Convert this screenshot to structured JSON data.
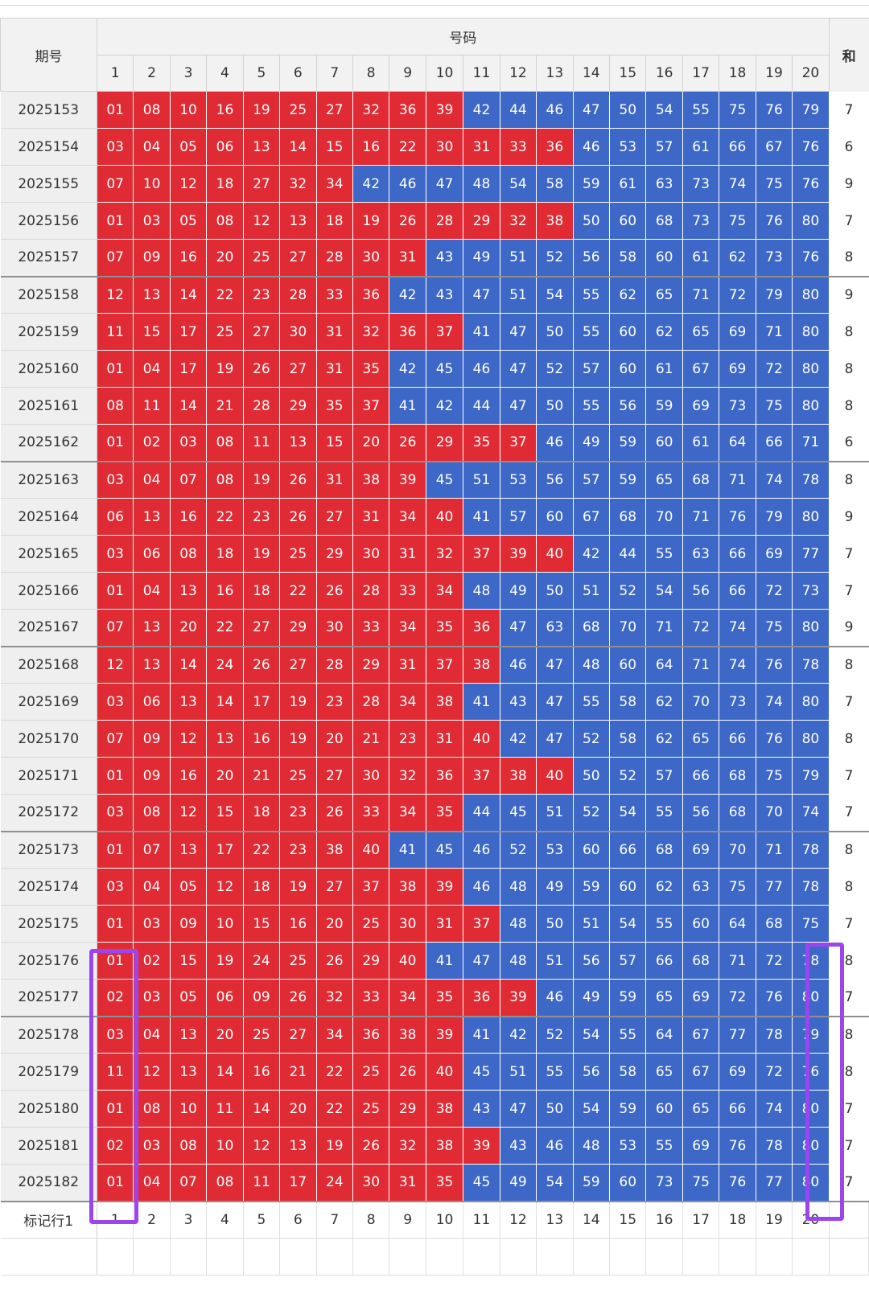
{
  "header": {
    "issue_label": "期号",
    "numbers_label": "号码",
    "extra_label": "和"
  },
  "columns": [
    "1",
    "2",
    "3",
    "4",
    "5",
    "6",
    "7",
    "8",
    "9",
    "10",
    "11",
    "12",
    "13",
    "14",
    "15",
    "16",
    "17",
    "18",
    "19",
    "20"
  ],
  "colors": {
    "red": "#e02b35",
    "blue": "#3d68c8",
    "highlight": "#9b45f0"
  },
  "rows": [
    {
      "issue": "2025153",
      "nums": [
        "01",
        "08",
        "10",
        "16",
        "19",
        "25",
        "27",
        "32",
        "36",
        "39",
        "42",
        "44",
        "46",
        "47",
        "50",
        "54",
        "55",
        "75",
        "76",
        "79"
      ],
      "red": 10,
      "extra": "7"
    },
    {
      "issue": "2025154",
      "nums": [
        "03",
        "04",
        "05",
        "06",
        "13",
        "14",
        "15",
        "16",
        "22",
        "30",
        "31",
        "33",
        "36",
        "46",
        "53",
        "57",
        "61",
        "66",
        "67",
        "76"
      ],
      "red": 13,
      "extra": "6"
    },
    {
      "issue": "2025155",
      "nums": [
        "07",
        "10",
        "12",
        "18",
        "27",
        "32",
        "34",
        "42",
        "46",
        "47",
        "48",
        "54",
        "58",
        "59",
        "61",
        "63",
        "73",
        "74",
        "75",
        "76"
      ],
      "red": 7,
      "extra": "9"
    },
    {
      "issue": "2025156",
      "nums": [
        "01",
        "03",
        "05",
        "08",
        "12",
        "13",
        "18",
        "19",
        "26",
        "28",
        "29",
        "32",
        "38",
        "50",
        "60",
        "68",
        "73",
        "75",
        "76",
        "80"
      ],
      "red": 13,
      "extra": "7"
    },
    {
      "issue": "2025157",
      "nums": [
        "07",
        "09",
        "16",
        "20",
        "25",
        "27",
        "28",
        "30",
        "31",
        "43",
        "49",
        "51",
        "52",
        "56",
        "58",
        "60",
        "61",
        "62",
        "73",
        "76"
      ],
      "red": 9,
      "extra": "8"
    },
    {
      "issue": "2025158",
      "nums": [
        "12",
        "13",
        "14",
        "22",
        "23",
        "28",
        "33",
        "36",
        "42",
        "43",
        "47",
        "51",
        "54",
        "55",
        "62",
        "65",
        "71",
        "72",
        "79",
        "80"
      ],
      "red": 8,
      "extra": "9"
    },
    {
      "issue": "2025159",
      "nums": [
        "11",
        "15",
        "17",
        "25",
        "27",
        "30",
        "31",
        "32",
        "36",
        "37",
        "41",
        "47",
        "50",
        "55",
        "60",
        "62",
        "65",
        "69",
        "71",
        "80"
      ],
      "red": 10,
      "extra": "8"
    },
    {
      "issue": "2025160",
      "nums": [
        "01",
        "04",
        "17",
        "19",
        "26",
        "27",
        "31",
        "35",
        "42",
        "45",
        "46",
        "47",
        "52",
        "57",
        "60",
        "61",
        "67",
        "69",
        "72",
        "80"
      ],
      "red": 8,
      "extra": "8"
    },
    {
      "issue": "2025161",
      "nums": [
        "08",
        "11",
        "14",
        "21",
        "28",
        "29",
        "35",
        "37",
        "41",
        "42",
        "44",
        "47",
        "50",
        "55",
        "56",
        "59",
        "69",
        "73",
        "75",
        "80"
      ],
      "red": 8,
      "extra": "8"
    },
    {
      "issue": "2025162",
      "nums": [
        "01",
        "02",
        "03",
        "08",
        "11",
        "13",
        "15",
        "20",
        "26",
        "29",
        "35",
        "37",
        "46",
        "49",
        "59",
        "60",
        "61",
        "64",
        "66",
        "71"
      ],
      "red": 12,
      "extra": "6"
    },
    {
      "issue": "2025163",
      "nums": [
        "03",
        "04",
        "07",
        "08",
        "19",
        "26",
        "31",
        "38",
        "39",
        "45",
        "51",
        "53",
        "56",
        "57",
        "59",
        "65",
        "68",
        "71",
        "74",
        "78"
      ],
      "red": 9,
      "extra": "8"
    },
    {
      "issue": "2025164",
      "nums": [
        "06",
        "13",
        "16",
        "22",
        "23",
        "26",
        "27",
        "31",
        "34",
        "40",
        "41",
        "57",
        "60",
        "67",
        "68",
        "70",
        "71",
        "76",
        "79",
        "80"
      ],
      "red": 10,
      "extra": "9"
    },
    {
      "issue": "2025165",
      "nums": [
        "03",
        "06",
        "08",
        "18",
        "19",
        "25",
        "29",
        "30",
        "31",
        "32",
        "37",
        "39",
        "40",
        "42",
        "44",
        "55",
        "63",
        "66",
        "69",
        "77"
      ],
      "red": 13,
      "extra": "7"
    },
    {
      "issue": "2025166",
      "nums": [
        "01",
        "04",
        "13",
        "16",
        "18",
        "22",
        "26",
        "28",
        "33",
        "34",
        "48",
        "49",
        "50",
        "51",
        "52",
        "54",
        "56",
        "66",
        "72",
        "73"
      ],
      "red": 10,
      "extra": "7"
    },
    {
      "issue": "2025167",
      "nums": [
        "07",
        "13",
        "20",
        "22",
        "27",
        "29",
        "30",
        "33",
        "34",
        "35",
        "36",
        "47",
        "63",
        "68",
        "70",
        "71",
        "72",
        "74",
        "75",
        "80"
      ],
      "red": 11,
      "extra": "9"
    },
    {
      "issue": "2025168",
      "nums": [
        "12",
        "13",
        "14",
        "24",
        "26",
        "27",
        "28",
        "29",
        "31",
        "37",
        "38",
        "46",
        "47",
        "48",
        "60",
        "64",
        "71",
        "74",
        "76",
        "78"
      ],
      "red": 11,
      "extra": "8"
    },
    {
      "issue": "2025169",
      "nums": [
        "03",
        "06",
        "13",
        "14",
        "17",
        "19",
        "23",
        "28",
        "34",
        "38",
        "41",
        "43",
        "47",
        "55",
        "58",
        "62",
        "70",
        "73",
        "74",
        "80"
      ],
      "red": 10,
      "extra": "7"
    },
    {
      "issue": "2025170",
      "nums": [
        "07",
        "09",
        "12",
        "13",
        "16",
        "19",
        "20",
        "21",
        "23",
        "31",
        "40",
        "42",
        "47",
        "52",
        "58",
        "62",
        "65",
        "66",
        "76",
        "80"
      ],
      "red": 11,
      "extra": "8"
    },
    {
      "issue": "2025171",
      "nums": [
        "01",
        "09",
        "16",
        "20",
        "21",
        "25",
        "27",
        "30",
        "32",
        "36",
        "37",
        "38",
        "40",
        "50",
        "52",
        "57",
        "66",
        "68",
        "75",
        "79"
      ],
      "red": 13,
      "extra": "7"
    },
    {
      "issue": "2025172",
      "nums": [
        "03",
        "08",
        "12",
        "15",
        "18",
        "23",
        "26",
        "33",
        "34",
        "35",
        "44",
        "45",
        "51",
        "52",
        "54",
        "55",
        "56",
        "68",
        "70",
        "74"
      ],
      "red": 10,
      "extra": "7"
    },
    {
      "issue": "2025173",
      "nums": [
        "01",
        "07",
        "13",
        "17",
        "22",
        "23",
        "38",
        "40",
        "41",
        "45",
        "46",
        "52",
        "53",
        "60",
        "66",
        "68",
        "69",
        "70",
        "71",
        "78"
      ],
      "red": 8,
      "extra": "8"
    },
    {
      "issue": "2025174",
      "nums": [
        "03",
        "04",
        "05",
        "12",
        "18",
        "19",
        "27",
        "37",
        "38",
        "39",
        "46",
        "48",
        "49",
        "59",
        "60",
        "62",
        "63",
        "75",
        "77",
        "78"
      ],
      "red": 10,
      "extra": "8"
    },
    {
      "issue": "2025175",
      "nums": [
        "01",
        "03",
        "09",
        "10",
        "15",
        "16",
        "20",
        "25",
        "30",
        "31",
        "37",
        "48",
        "50",
        "51",
        "54",
        "55",
        "60",
        "64",
        "68",
        "75"
      ],
      "red": 11,
      "extra": "7"
    },
    {
      "issue": "2025176",
      "nums": [
        "01",
        "02",
        "15",
        "19",
        "24",
        "25",
        "26",
        "29",
        "40",
        "41",
        "47",
        "48",
        "51",
        "56",
        "57",
        "66",
        "68",
        "71",
        "72",
        "78"
      ],
      "red": 9,
      "extra": "8"
    },
    {
      "issue": "2025177",
      "nums": [
        "02",
        "03",
        "05",
        "06",
        "09",
        "26",
        "32",
        "33",
        "34",
        "35",
        "36",
        "39",
        "46",
        "49",
        "59",
        "65",
        "69",
        "72",
        "76",
        "80"
      ],
      "red": 12,
      "extra": "7"
    },
    {
      "issue": "2025178",
      "nums": [
        "03",
        "04",
        "13",
        "20",
        "25",
        "27",
        "34",
        "36",
        "38",
        "39",
        "41",
        "42",
        "52",
        "54",
        "55",
        "64",
        "67",
        "77",
        "78",
        "79"
      ],
      "red": 10,
      "extra": "8"
    },
    {
      "issue": "2025179",
      "nums": [
        "11",
        "12",
        "13",
        "14",
        "16",
        "21",
        "22",
        "25",
        "26",
        "40",
        "45",
        "51",
        "55",
        "56",
        "58",
        "65",
        "67",
        "69",
        "72",
        "76"
      ],
      "red": 10,
      "extra": "8"
    },
    {
      "issue": "2025180",
      "nums": [
        "01",
        "08",
        "10",
        "11",
        "14",
        "20",
        "22",
        "25",
        "29",
        "38",
        "43",
        "47",
        "50",
        "54",
        "59",
        "60",
        "65",
        "66",
        "74",
        "80"
      ],
      "red": 10,
      "extra": "7"
    },
    {
      "issue": "2025181",
      "nums": [
        "02",
        "03",
        "08",
        "10",
        "12",
        "13",
        "19",
        "26",
        "32",
        "38",
        "39",
        "43",
        "46",
        "48",
        "53",
        "55",
        "69",
        "76",
        "78",
        "80"
      ],
      "red": 11,
      "extra": "7"
    },
    {
      "issue": "2025182",
      "nums": [
        "01",
        "04",
        "07",
        "08",
        "11",
        "17",
        "24",
        "30",
        "31",
        "35",
        "45",
        "49",
        "54",
        "59",
        "60",
        "73",
        "75",
        "76",
        "77",
        "80"
      ],
      "red": 10,
      "extra": "7"
    }
  ],
  "footer": {
    "label": "标记行1",
    "values": [
      "1",
      "2",
      "3",
      "4",
      "5",
      "6",
      "7",
      "8",
      "9",
      "10",
      "11",
      "12",
      "13",
      "14",
      "15",
      "16",
      "17",
      "18",
      "19",
      "20"
    ]
  }
}
